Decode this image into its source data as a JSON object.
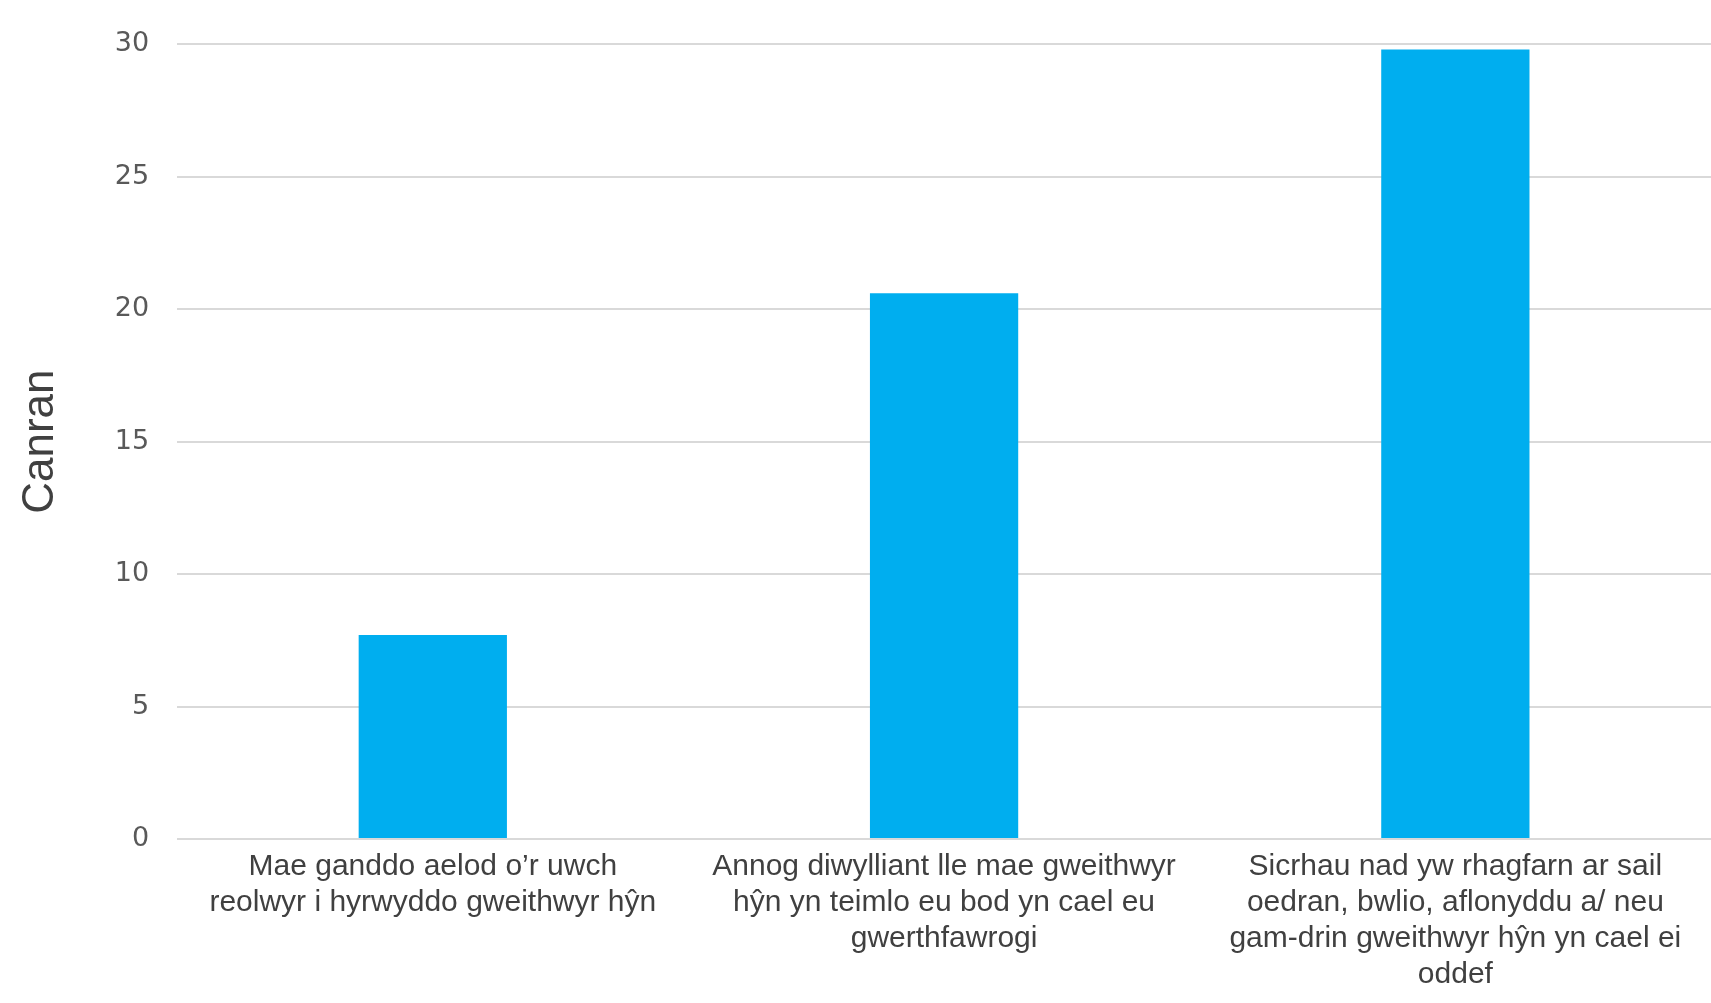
{
  "chart_data": {
    "type": "bar",
    "ylabel": "Canran",
    "categories": [
      "Mae ganddo aelod o’r uwch reolwyr i hyrwyddo gweithwyr hŷn",
      "Annog diwylliant lle mae gweithwyr hŷn yn teimlo eu bod yn cael eu gwerthfawrogi",
      "Sicrhau nad yw rhagfarn ar sail oedran, bwlio, aflonyddu a/ neu gam-drin gweithwyr hŷn yn cael ei oddef"
    ],
    "values": [
      7.7,
      20.6,
      29.8
    ],
    "color": "#00aeef",
    "ylim": [
      0,
      30
    ],
    "yticks": [
      0,
      5,
      10,
      15,
      20,
      25,
      30
    ],
    "grid": "y",
    "legend": false
  }
}
